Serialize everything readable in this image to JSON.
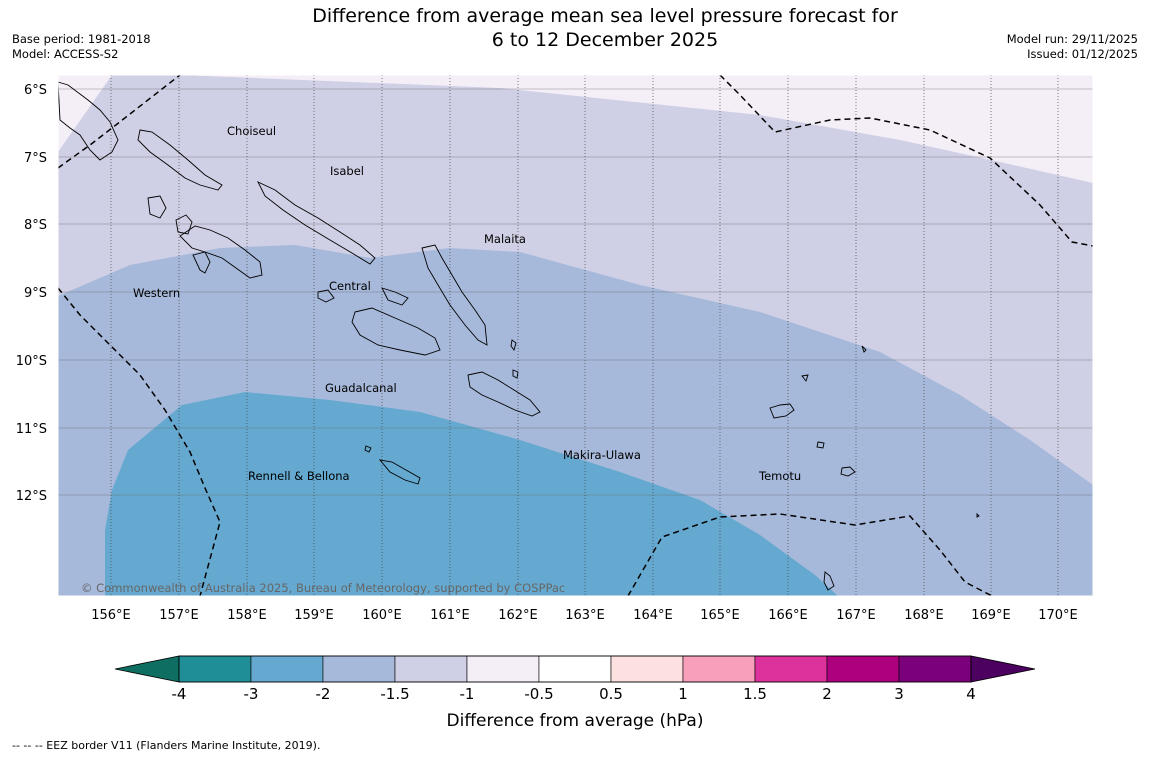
{
  "header": {
    "title_line1": "Difference from average mean sea level pressure forecast for",
    "title_line2": "6 to 12 December 2025",
    "base_period": "Base period: 1981-2018",
    "model": "Model: ACCESS-S2",
    "model_run": "Model run: 29/11/2025",
    "issued": "Issued: 01/12/2025"
  },
  "map": {
    "latitude_labels": [
      "6°S",
      "7°S",
      "8°S",
      "9°S",
      "10°S",
      "11°S",
      "12°S"
    ],
    "longitude_labels": [
      "156°E",
      "157°E",
      "158°E",
      "159°E",
      "160°E",
      "161°E",
      "162°E",
      "163°E",
      "164°E",
      "165°E",
      "166°E",
      "167°E",
      "168°E",
      "169°E",
      "170°E"
    ],
    "regions": [
      "Choiseul",
      "Isabel",
      "Malaita",
      "Western",
      "Central",
      "Guadalcanal",
      "Makira-Ulawa",
      "Rennell & Bellona",
      "Temotu"
    ],
    "copyright": "© Commonwealth of Australia 2025, Bureau of Meteorology, supported by COSPPac"
  },
  "colorbar": {
    "title": "Difference from average (hPa)",
    "ticks": [
      "-4",
      "-3",
      "-2",
      "-1.5",
      "-1",
      "-0.5",
      "0.5",
      "1",
      "1.5",
      "2",
      "3",
      "4"
    ],
    "colors": [
      "#1f8e97",
      "#65a9d0",
      "#a6b9da",
      "#cfcfe5",
      "#f4eef7",
      "#ffffff",
      "#fde0e0",
      "#f89fbc",
      "#dc329c",
      "#ac007e",
      "#7b007b"
    ],
    "extend_low_color": "#0f6e62",
    "extend_high_color": "#4c0060"
  },
  "footnote": "--  --  -- EEZ border V11 (Flanders Marine Institute, 2019)."
}
